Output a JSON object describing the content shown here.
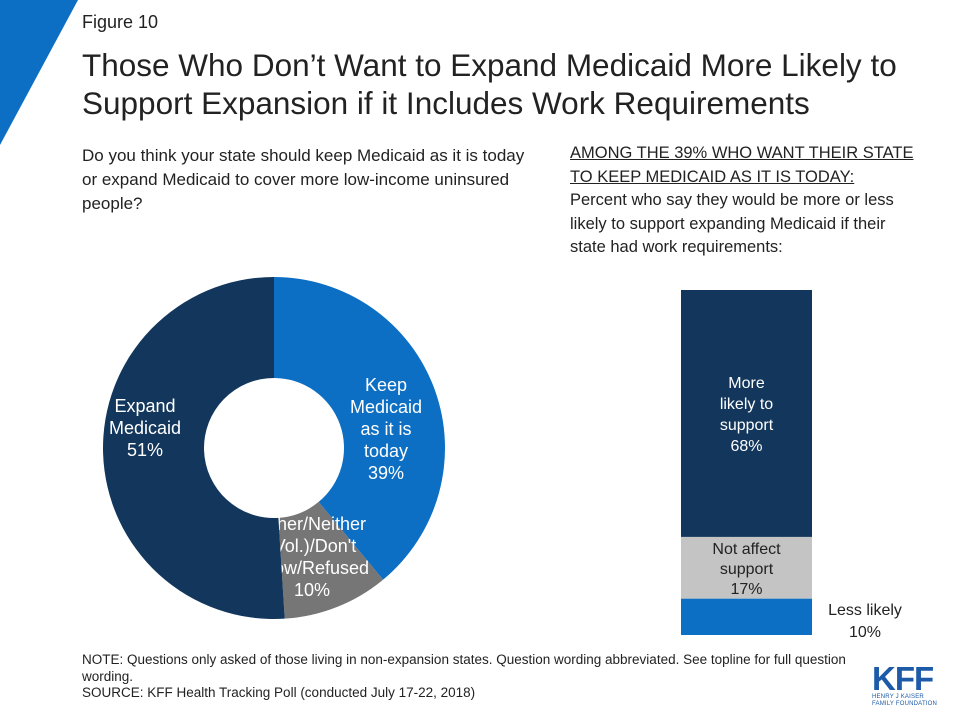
{
  "figure_label": "Figure 10",
  "title": "Those Who Don’t Want to Expand Medicaid More Likely to Support Expansion if it Includes Work Requirements",
  "question": "Do you think your state should keep Medicaid as it is today or expand Medicaid to cover more low-income uninsured people?",
  "among_heading": "AMONG THE 39% WHO WANT THEIR STATE TO KEEP MEDICAID AS IT IS TODAY:",
  "among_text": "Percent who say they would be more or less likely to support expanding Medicaid if their state had work requirements:",
  "note": "NOTE: Questions only asked of those living in non-expansion states. Question wording abbreviated. See topline for full question wording.",
  "source": "SOURCE: KFF Health Tracking Poll (conducted July 17-22, 2018)",
  "logo": {
    "main": "KFF",
    "line1": "HENRY J KAISER",
    "line2": "FAMILY FOUNDATION"
  },
  "colors": {
    "dark_navy": "#13375c",
    "blue": "#0d6fc4",
    "gray": "#767676",
    "light_gray": "#c4c4c4",
    "accent_blue": "#0d6fc4"
  },
  "chart_data": [
    {
      "type": "pie",
      "title": "",
      "slices": [
        {
          "label": [
            "Keep",
            "Medicaid",
            "as it is",
            "today",
            "39%"
          ],
          "value": 39,
          "color": "#0d6fc4"
        },
        {
          "label": [
            "Other/Neither",
            "(Vol.)/Don't",
            "know/Refused",
            "10%"
          ],
          "value": 10,
          "color": "#767676"
        },
        {
          "label": [
            "Expand",
            "Medicaid",
            "51%"
          ],
          "value": 51,
          "color": "#13375c"
        }
      ]
    },
    {
      "type": "bar",
      "stacked": true,
      "segments": [
        {
          "label": [
            "More",
            "likely to",
            "support",
            "68%"
          ],
          "value": 68,
          "color": "#13375c"
        },
        {
          "label": [
            "Not affect",
            "support",
            "17%"
          ],
          "value": 17,
          "color": "#c4c4c4"
        },
        {
          "label": [
            "Less likely",
            "10%"
          ],
          "value": 10,
          "color": "#0d6fc4"
        }
      ]
    }
  ]
}
